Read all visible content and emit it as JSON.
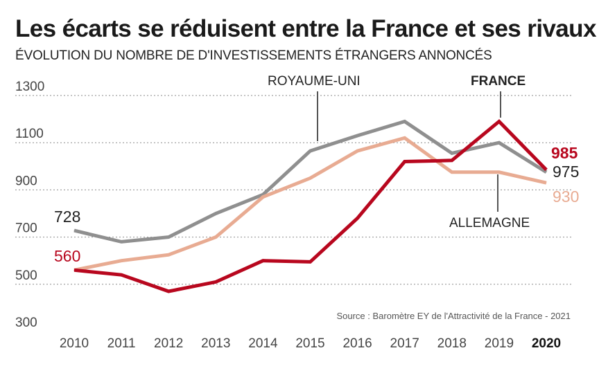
{
  "chart_data": {
    "type": "line",
    "title": "Les écarts se réduisent entre la France et ses rivaux",
    "subtitle": "ÉVOLUTION DU NOMBRE DE D'INVESTISSEMENTS ÉTRANGERS ANNONCÉS",
    "source": "Source : Baromètre EY de l'Attractivité de la France - 2021",
    "x": [
      "2010",
      "2011",
      "2012",
      "2013",
      "2014",
      "2015",
      "2016",
      "2017",
      "2018",
      "2019",
      "2020"
    ],
    "highlight_x": "2020",
    "yticks": [
      300,
      500,
      700,
      900,
      1100,
      1300
    ],
    "ylim": [
      300,
      1300
    ],
    "grid": true,
    "series": [
      {
        "name": "ROYAUME-UNI",
        "color": "#8f8f8f",
        "values": [
          728,
          680,
          700,
          800,
          880,
          1065,
          1130,
          1190,
          1055,
          1100,
          975
        ]
      },
      {
        "name": "ALLEMAGNE",
        "color": "#e8ab92",
        "values": [
          560,
          600,
          625,
          700,
          870,
          950,
          1065,
          1120,
          975,
          975,
          930
        ]
      },
      {
        "name": "FRANCE",
        "color": "#b8071e",
        "values": [
          560,
          540,
          470,
          510,
          600,
          595,
          780,
          1020,
          1025,
          1190,
          985
        ]
      }
    ],
    "annotations": {
      "start_gray": "728",
      "start_red": "560",
      "end_france": "985",
      "end_uk": "975",
      "end_germany": "930"
    }
  }
}
